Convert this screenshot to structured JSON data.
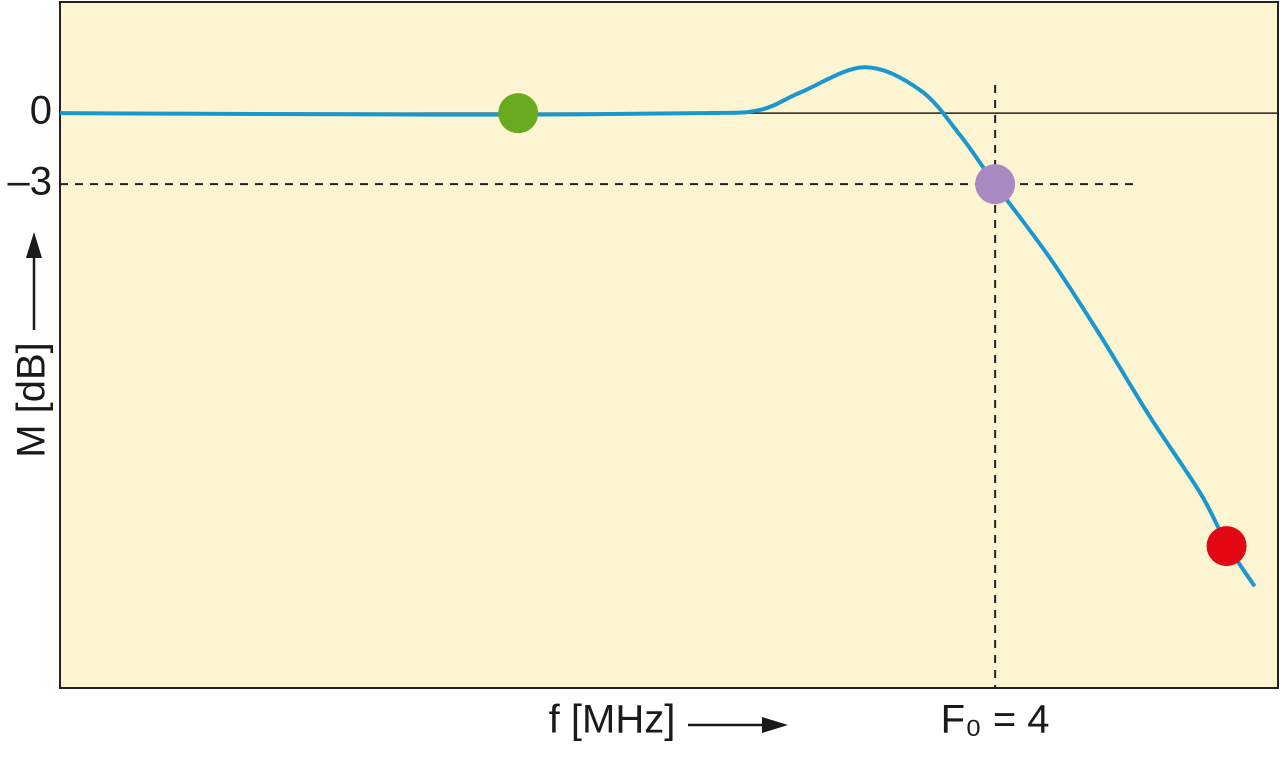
{
  "chart_data": {
    "type": "line",
    "ylabel": "M [dB]",
    "xlabel": "f [MHz]",
    "xlim": [
      0,
      5.21
    ],
    "ylim": [
      -24.3,
      4.7
    ],
    "xticks": [
      {
        "value": 4,
        "label": "F₀ = 4"
      }
    ],
    "yticks": [
      0,
      {
        "value": -3,
        "label": "–3"
      }
    ],
    "background": "#fdf5d2",
    "series": [
      {
        "color": "#1a97cf",
        "x": [
          0,
          1.03,
          1.88,
          2.74,
          2.99,
          3.17,
          3.44,
          3.68,
          3.85,
          4.0,
          4.24,
          4.45,
          4.66,
          4.88,
          4.99,
          5.11
        ],
        "values": [
          0,
          -0.04,
          -0.06,
          0,
          0.13,
          0.89,
          1.94,
          0.97,
          -0.93,
          -3.0,
          -6.2,
          -9.4,
          -12.8,
          -16.1,
          -18.2,
          -20.0
        ]
      }
    ],
    "points": [
      {
        "x": 1.96,
        "y": 0,
        "color": "#6aaa1e"
      },
      {
        "x": 4.0,
        "y": -3,
        "color": "#a98ac0"
      },
      {
        "x": 4.99,
        "y": -18.3,
        "color": "#e30613"
      }
    ]
  }
}
